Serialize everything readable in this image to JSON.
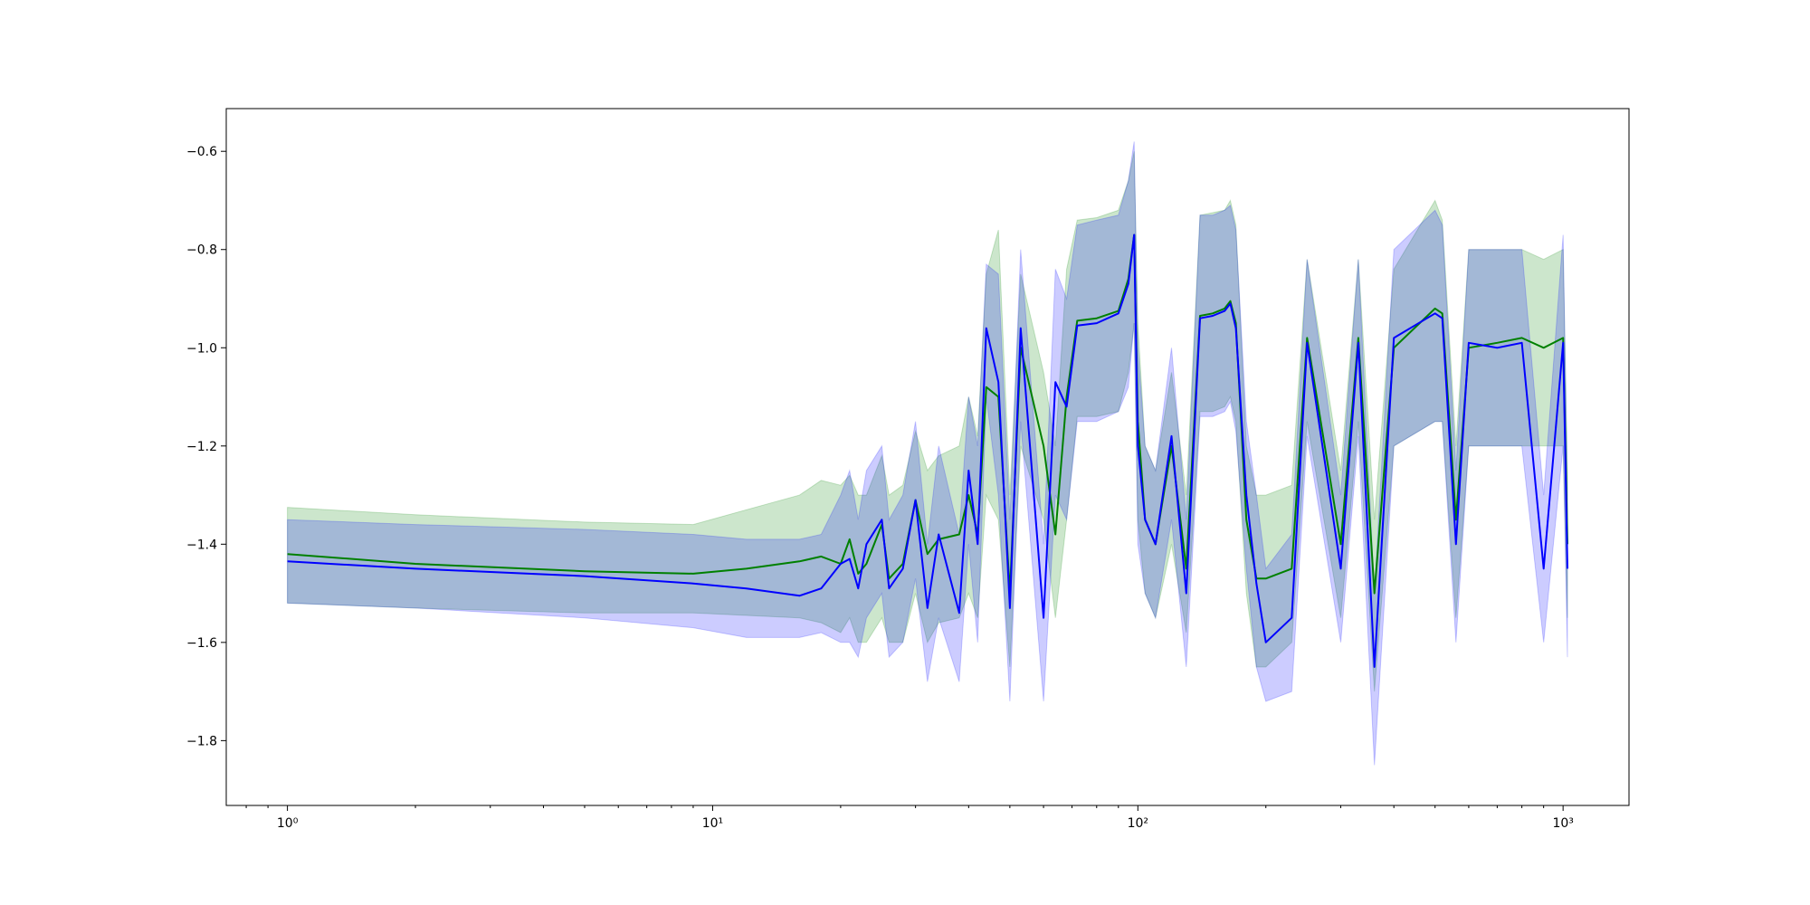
{
  "chart_data": {
    "type": "line",
    "xscale": "log",
    "band_alpha": 0.2,
    "x": [
      1,
      2,
      5,
      9,
      12,
      16,
      18,
      20,
      21,
      22,
      23,
      25,
      26,
      28,
      30,
      32,
      34,
      38,
      40,
      42,
      44,
      47,
      50,
      53,
      60,
      64,
      68,
      72,
      80,
      90,
      95,
      98,
      100,
      104,
      110,
      120,
      130,
      140,
      150,
      160,
      165,
      170,
      180,
      190,
      200,
      230,
      250,
      300,
      330,
      360,
      400,
      500,
      520,
      560,
      600,
      700,
      800,
      900,
      1000,
      1024
    ],
    "series": [
      {
        "color": "#008000",
        "values": [
          -1.42,
          -1.44,
          -1.455,
          -1.46,
          -1.45,
          -1.435,
          -1.425,
          -1.44,
          -1.39,
          -1.46,
          -1.44,
          -1.36,
          -1.47,
          -1.44,
          -1.31,
          -1.42,
          -1.39,
          -1.38,
          -1.3,
          -1.38,
          -1.08,
          -1.1,
          -1.5,
          -1.0,
          -1.2,
          -1.38,
          -1.1,
          -0.945,
          -0.94,
          -0.925,
          -0.86,
          -0.77,
          -1.15,
          -1.35,
          -1.4,
          -1.2,
          -1.45,
          -0.935,
          -0.93,
          -0.92,
          -0.905,
          -0.95,
          -1.35,
          -1.47,
          -1.47,
          -1.45,
          -0.98,
          -1.4,
          -0.98,
          -1.5,
          -1.0,
          -0.92,
          -0.93,
          -1.35,
          -1.0,
          -0.99,
          -0.98,
          -1.0,
          -0.98,
          -1.4
        ],
        "upper": [
          -1.325,
          -1.34,
          -1.355,
          -1.36,
          -1.33,
          -1.3,
          -1.27,
          -1.28,
          -1.26,
          -1.3,
          -1.3,
          -1.22,
          -1.3,
          -1.28,
          -1.17,
          -1.25,
          -1.22,
          -1.2,
          -1.1,
          -1.18,
          -0.85,
          -0.76,
          -1.3,
          -0.85,
          -1.05,
          -1.2,
          -0.84,
          -0.74,
          -0.735,
          -0.72,
          -0.66,
          -0.6,
          -0.95,
          -1.2,
          -1.25,
          -1.05,
          -1.3,
          -0.73,
          -0.725,
          -0.72,
          -0.7,
          -0.75,
          -1.2,
          -1.3,
          -1.3,
          -1.28,
          -0.82,
          -1.25,
          -0.82,
          -1.35,
          -0.84,
          -0.7,
          -0.74,
          -1.2,
          -0.8,
          -0.8,
          -0.8,
          -0.82,
          -0.8,
          -1.25
        ],
        "lower": [
          -1.52,
          -1.53,
          -1.54,
          -1.54,
          -1.545,
          -1.55,
          -1.56,
          -1.58,
          -1.55,
          -1.6,
          -1.6,
          -1.55,
          -1.6,
          -1.6,
          -1.5,
          -1.6,
          -1.56,
          -1.55,
          -1.5,
          -1.55,
          -1.3,
          -1.35,
          -1.65,
          -1.2,
          -1.35,
          -1.55,
          -1.35,
          -1.14,
          -1.14,
          -1.13,
          -1.05,
          -0.95,
          -1.35,
          -1.5,
          -1.55,
          -1.4,
          -1.58,
          -1.13,
          -1.13,
          -1.12,
          -1.1,
          -1.15,
          -1.5,
          -1.65,
          -1.65,
          -1.6,
          -1.15,
          -1.55,
          -1.15,
          -1.7,
          -1.2,
          -1.15,
          -1.15,
          -1.55,
          -1.2,
          -1.2,
          -1.2,
          -1.2,
          -1.2,
          -1.55
        ]
      },
      {
        "color": "#0000ff",
        "values": [
          -1.435,
          -1.45,
          -1.465,
          -1.48,
          -1.49,
          -1.505,
          -1.49,
          -1.44,
          -1.43,
          -1.49,
          -1.4,
          -1.35,
          -1.49,
          -1.45,
          -1.31,
          -1.53,
          -1.38,
          -1.54,
          -1.25,
          -1.4,
          -0.96,
          -1.07,
          -1.53,
          -0.96,
          -1.55,
          -1.07,
          -1.12,
          -0.955,
          -0.95,
          -0.93,
          -0.87,
          -0.77,
          -1.2,
          -1.35,
          -1.4,
          -1.18,
          -1.5,
          -0.94,
          -0.935,
          -0.925,
          -0.91,
          -0.96,
          -1.3,
          -1.48,
          -1.6,
          -1.55,
          -0.99,
          -1.45,
          -0.99,
          -1.65,
          -0.98,
          -0.93,
          -0.94,
          -1.4,
          -0.99,
          -1.0,
          -0.99,
          -1.45,
          -0.99,
          -1.45
        ],
        "upper": [
          -1.35,
          -1.36,
          -1.37,
          -1.38,
          -1.39,
          -1.39,
          -1.38,
          -1.3,
          -1.25,
          -1.35,
          -1.25,
          -1.2,
          -1.35,
          -1.3,
          -1.15,
          -1.4,
          -1.2,
          -1.38,
          -1.1,
          -1.2,
          -0.83,
          -0.85,
          -1.35,
          -0.8,
          -1.4,
          -0.84,
          -0.9,
          -0.75,
          -0.74,
          -0.73,
          -0.66,
          -0.58,
          -1.0,
          -1.2,
          -1.25,
          -1.0,
          -1.35,
          -0.73,
          -0.73,
          -0.72,
          -0.71,
          -0.76,
          -1.15,
          -1.3,
          -1.45,
          -1.38,
          -0.82,
          -1.3,
          -0.82,
          -1.5,
          -0.8,
          -0.72,
          -0.75,
          -1.25,
          -0.8,
          -0.8,
          -0.8,
          -1.3,
          -0.77,
          -1.3
        ],
        "lower": [
          -1.52,
          -1.53,
          -1.55,
          -1.57,
          -1.59,
          -1.59,
          -1.58,
          -1.6,
          -1.6,
          -1.63,
          -1.55,
          -1.5,
          -1.63,
          -1.6,
          -1.47,
          -1.68,
          -1.55,
          -1.68,
          -1.4,
          -1.6,
          -1.1,
          -1.3,
          -1.72,
          -1.15,
          -1.72,
          -1.3,
          -1.35,
          -1.15,
          -1.15,
          -1.13,
          -1.08,
          -0.95,
          -1.4,
          -1.5,
          -1.55,
          -1.35,
          -1.65,
          -1.14,
          -1.14,
          -1.13,
          -1.11,
          -1.17,
          -1.45,
          -1.65,
          -1.72,
          -1.7,
          -1.18,
          -1.6,
          -1.18,
          -1.85,
          -1.2,
          -1.15,
          -1.15,
          -1.6,
          -1.2,
          -1.2,
          -1.2,
          -1.6,
          -1.2,
          -1.63
        ]
      }
    ],
    "xlim": [
      0.718,
      1429
    ],
    "xticks": [
      {
        "value": 1,
        "label": "10⁰"
      },
      {
        "value": 10,
        "label": "10¹"
      },
      {
        "value": 100,
        "label": "10²"
      },
      {
        "value": 1000,
        "label": "10³"
      }
    ],
    "xminorticks": [
      0.8,
      0.9,
      2,
      3,
      4,
      5,
      6,
      7,
      8,
      9,
      20,
      30,
      40,
      50,
      60,
      70,
      80,
      90,
      200,
      300,
      400,
      500,
      600,
      700,
      800,
      900
    ],
    "ylim": [
      -1.932,
      -0.513
    ],
    "yticks": [
      {
        "value": -1.8,
        "label": "−1.8"
      },
      {
        "value": -1.6,
        "label": "−1.6"
      },
      {
        "value": -1.4,
        "label": "−1.4"
      },
      {
        "value": -1.2,
        "label": "−1.2"
      },
      {
        "value": -1.0,
        "label": "−1.0"
      },
      {
        "value": -0.8,
        "label": "−0.8"
      },
      {
        "value": -0.6,
        "label": "−0.6"
      }
    ]
  }
}
